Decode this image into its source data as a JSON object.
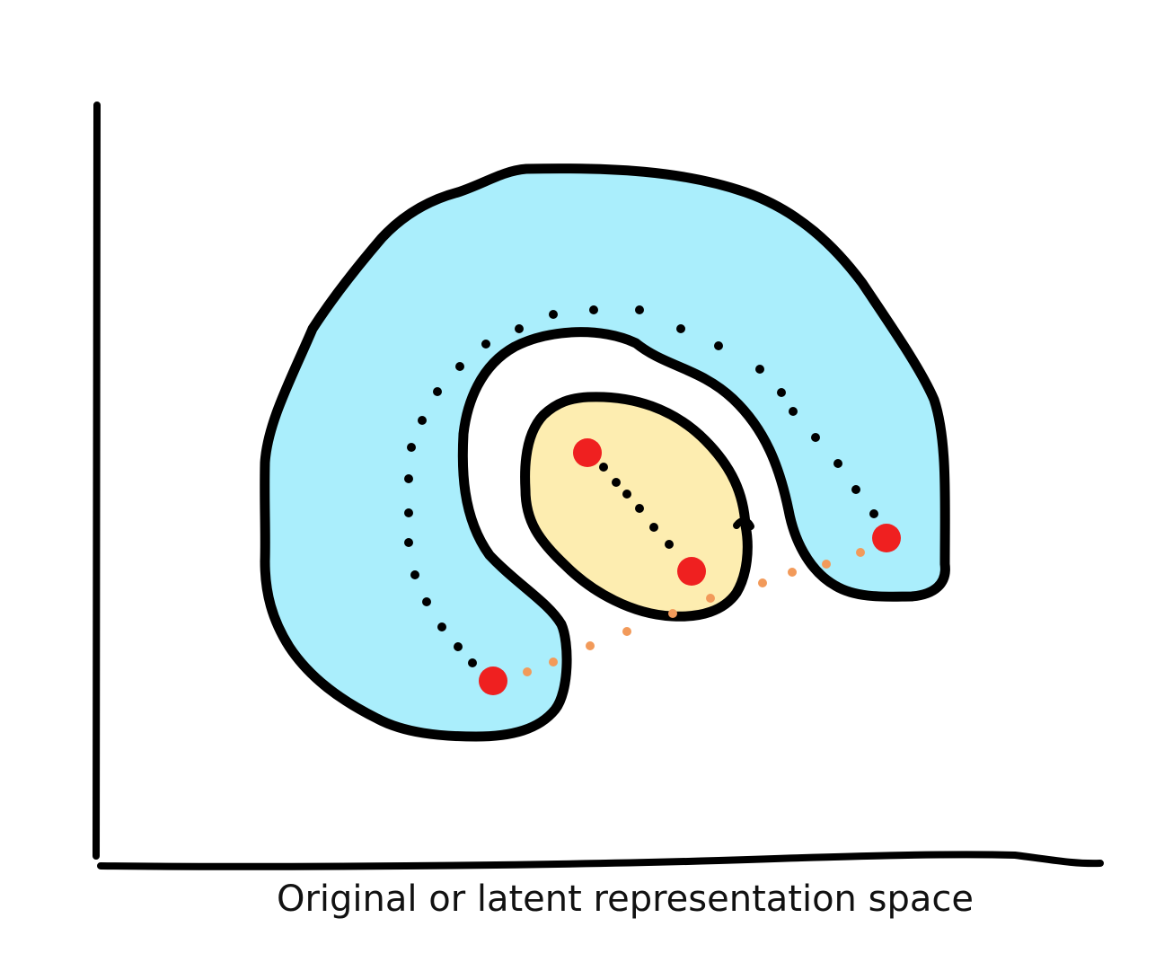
{
  "figure": {
    "axis_label": "Original or latent representation space"
  },
  "colors": {
    "outer_region_fill": "#aaeefc",
    "inner_region_fill": "#fdedb0",
    "outline": "#000000",
    "sample_point": "#ef2020",
    "manifold_path": "#000000",
    "linear_path": "#f29a5a"
  }
}
